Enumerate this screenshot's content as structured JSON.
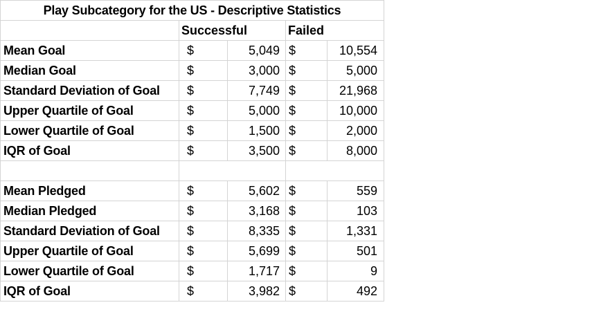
{
  "title": "Play Subcategory for the US -  Descriptive Statistics",
  "columns": {
    "successful": "Successful",
    "failed": "Failed"
  },
  "currency_symbol": "$",
  "goal_rows": [
    {
      "label": "Mean Goal",
      "successful": "5,049",
      "failed": "10,554"
    },
    {
      "label": "Median Goal",
      "successful": "3,000",
      "failed": "5,000"
    },
    {
      "label": "Standard Deviation of Goal",
      "successful": "7,749",
      "failed": "21,968"
    },
    {
      "label": "Upper Quartile of Goal",
      "successful": "5,000",
      "failed": "10,000"
    },
    {
      "label": "Lower Quartile of Goal",
      "successful": "1,500",
      "failed": "2,000"
    },
    {
      "label": "IQR of Goal",
      "successful": "3,500",
      "failed": "8,000"
    }
  ],
  "pledged_rows": [
    {
      "label": "Mean Pledged",
      "successful": "5,602",
      "failed": "559"
    },
    {
      "label": "Median Pledged",
      "successful": "3,168",
      "failed": "103"
    },
    {
      "label": "Standard Deviation of Goal",
      "successful": "8,335",
      "failed": "1,331"
    },
    {
      "label": "Upper Quartile of Goal",
      "successful": "5,699",
      "failed": "501"
    },
    {
      "label": "Lower Quartile of Goal",
      "successful": "1,717",
      "failed": "9"
    },
    {
      "label": "IQR of Goal",
      "successful": "3,982",
      "failed": "492"
    }
  ]
}
